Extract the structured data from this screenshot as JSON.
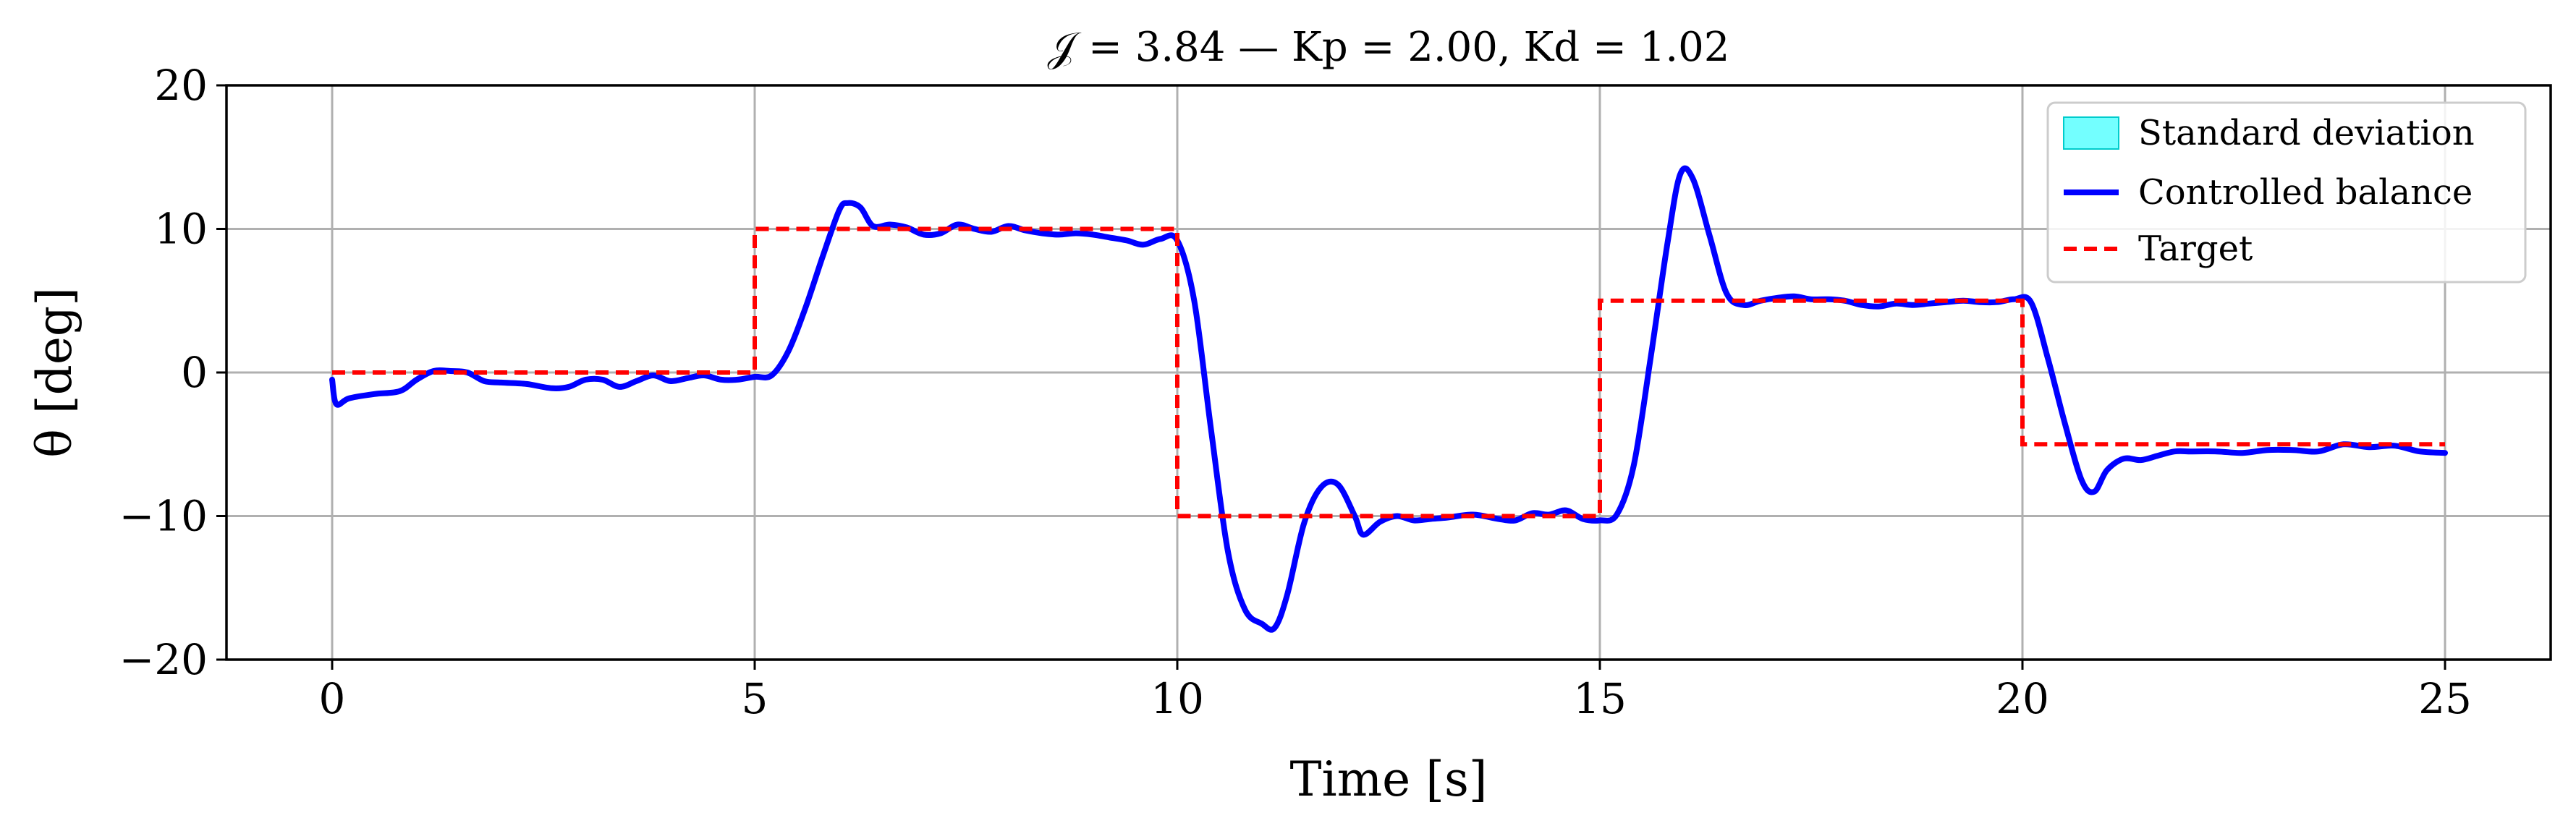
{
  "chart_data": {
    "type": "line",
    "title": "𝒥 = 3.84 — Kp = 2.00, Kd = 1.02",
    "xlabel": "Time [s]",
    "ylabel": "θ [deg]",
    "xlim": [
      -1.25,
      26.25
    ],
    "ylim": [
      -20,
      20
    ],
    "xticks": [
      0,
      5,
      10,
      15,
      20,
      25
    ],
    "yticks": [
      20,
      10,
      0,
      -10,
      -20
    ],
    "xtick_labels": [
      "0",
      "5",
      "10",
      "15",
      "20",
      "25"
    ],
    "ytick_labels": [
      "20",
      "10",
      "0",
      "−10",
      "−20"
    ],
    "grid": true,
    "legend_position": "top-right",
    "series": [
      {
        "name": "Standard deviation",
        "kind": "band",
        "color": "#00ffff"
      },
      {
        "name": "Controlled balance",
        "kind": "line",
        "color": "#0000ff",
        "x": [
          0,
          0.05,
          0.2,
          0.5,
          0.8,
          1.0,
          1.2,
          1.4,
          1.6,
          1.8,
          2.0,
          2.3,
          2.6,
          2.8,
          3.0,
          3.2,
          3.4,
          3.6,
          3.8,
          4.0,
          4.2,
          4.4,
          4.6,
          4.8,
          5.0,
          5.2,
          5.4,
          5.6,
          5.8,
          6.0,
          6.1,
          6.25,
          6.4,
          6.6,
          6.8,
          7.0,
          7.2,
          7.4,
          7.6,
          7.8,
          8.0,
          8.2,
          8.4,
          8.6,
          8.8,
          9.0,
          9.2,
          9.4,
          9.6,
          9.8,
          10.0,
          10.2,
          10.4,
          10.6,
          10.8,
          11.0,
          11.15,
          11.3,
          11.5,
          11.7,
          11.9,
          12.1,
          12.2,
          12.4,
          12.6,
          12.8,
          13.0,
          13.2,
          13.5,
          13.8,
          14.0,
          14.2,
          14.4,
          14.6,
          14.8,
          15.0,
          15.2,
          15.4,
          15.6,
          15.8,
          15.95,
          16.1,
          16.3,
          16.5,
          16.7,
          16.9,
          17.1,
          17.3,
          17.5,
          17.7,
          17.9,
          18.1,
          18.3,
          18.5,
          18.7,
          18.9,
          19.1,
          19.3,
          19.5,
          19.7,
          19.9,
          20.1,
          20.3,
          20.5,
          20.7,
          20.85,
          21.0,
          21.2,
          21.4,
          21.6,
          21.8,
          22.0,
          22.3,
          22.6,
          22.9,
          23.2,
          23.5,
          23.8,
          24.1,
          24.4,
          24.7,
          25.0
        ],
        "y": [
          -0.5,
          -2.2,
          -1.8,
          -1.5,
          -1.3,
          -0.5,
          0.1,
          0.1,
          0.0,
          -0.6,
          -0.7,
          -0.8,
          -1.1,
          -1.0,
          -0.5,
          -0.5,
          -1.0,
          -0.6,
          -0.2,
          -0.6,
          -0.4,
          -0.2,
          -0.5,
          -0.5,
          -0.3,
          -0.2,
          1.5,
          4.5,
          8.0,
          11.3,
          11.8,
          11.5,
          10.2,
          10.3,
          10.1,
          9.6,
          9.7,
          10.3,
          10.0,
          9.8,
          10.2,
          9.9,
          9.7,
          9.6,
          9.7,
          9.6,
          9.4,
          9.2,
          8.9,
          9.3,
          9.2,
          5.0,
          -4.0,
          -12.5,
          -16.5,
          -17.5,
          -17.8,
          -15.5,
          -10.5,
          -8.0,
          -7.8,
          -10.0,
          -11.3,
          -10.4,
          -10.0,
          -10.3,
          -10.2,
          -10.1,
          -9.9,
          -10.2,
          -10.3,
          -9.8,
          -9.9,
          -9.6,
          -10.2,
          -10.3,
          -9.9,
          -6.5,
          1.0,
          9.0,
          13.8,
          13.5,
          9.5,
          5.5,
          4.7,
          5.0,
          5.2,
          5.3,
          5.1,
          5.1,
          5.0,
          4.7,
          4.6,
          4.8,
          4.7,
          4.8,
          4.9,
          5.0,
          4.9,
          4.9,
          5.1,
          4.9,
          1.0,
          -3.5,
          -7.5,
          -8.3,
          -6.8,
          -6.0,
          -6.1,
          -5.8,
          -5.5,
          -5.5,
          -5.5,
          -5.6,
          -5.4,
          -5.4,
          -5.5,
          -5.0,
          -5.2,
          -5.1,
          -5.5,
          -5.6
        ]
      },
      {
        "name": "Target",
        "kind": "step",
        "color": "#ff0000",
        "x": [
          0,
          5,
          5,
          10,
          10,
          15,
          15,
          20,
          20,
          25
        ],
        "y": [
          0,
          0,
          10,
          10,
          -10,
          -10,
          5,
          5,
          -5,
          -5
        ]
      }
    ]
  }
}
